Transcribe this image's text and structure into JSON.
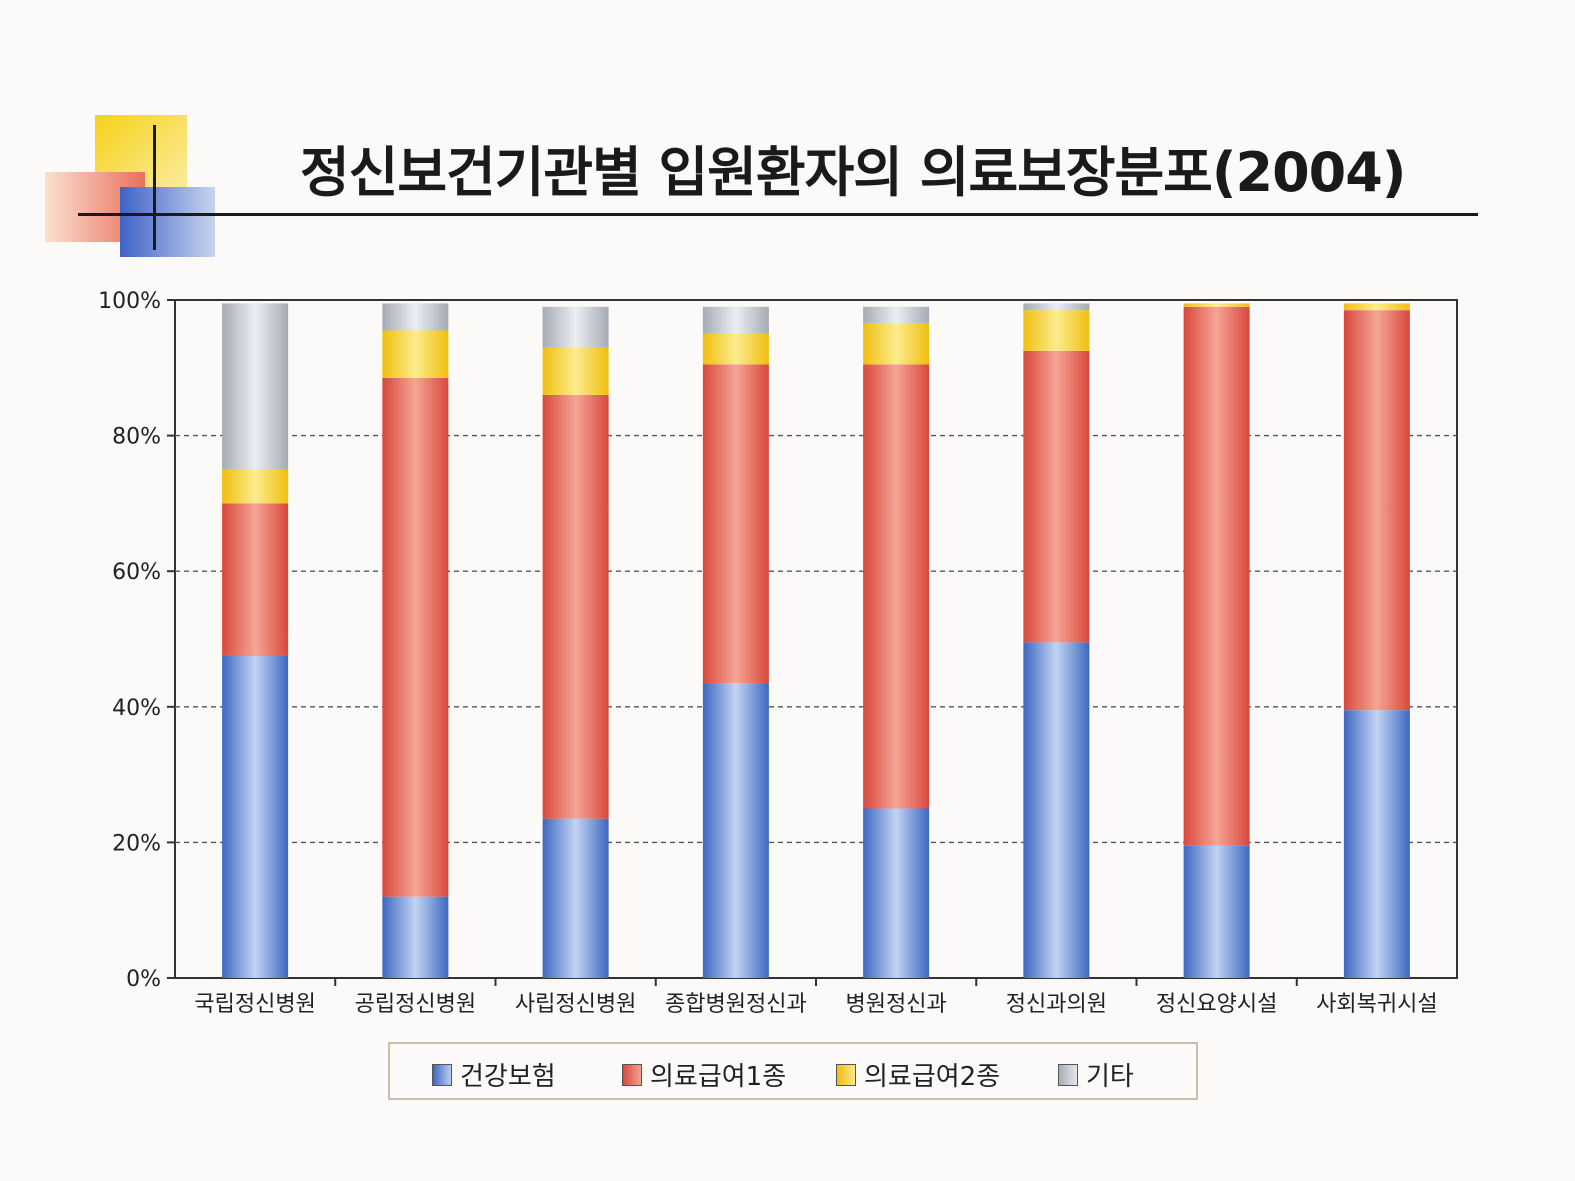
{
  "title": "정신보건기관별 입원환자의 의료보장분포(2004)",
  "colors": {
    "series": [
      "#5b86cf",
      "#e0594e",
      "#f3cf2e",
      "#c4c8d2"
    ],
    "axis": "#333333",
    "grid": "#555555"
  },
  "chart_data": {
    "type": "bar",
    "stacked": true,
    "title": "정신보건기관별 입원환자의 의료보장분포(2004)",
    "categories": [
      "국립정신병원",
      "공립정신병원",
      "사립정신병원",
      "종합병원정신과",
      "병원정신과",
      "정신과의원",
      "정신요양시설",
      "사회복귀시설"
    ],
    "series": [
      {
        "name": "건강보험",
        "values": [
          47.5,
          12,
          23.5,
          43.5,
          25,
          49.5,
          19.5,
          39.5
        ]
      },
      {
        "name": "의료급여1종",
        "values": [
          22.5,
          76.5,
          62.5,
          47,
          65.5,
          43,
          79.5,
          59
        ]
      },
      {
        "name": "의료급여2종",
        "values": [
          5,
          7,
          7,
          4.5,
          6,
          6,
          0.5,
          1
        ]
      },
      {
        "name": "기타",
        "values": [
          24.5,
          4,
          6,
          4,
          2.5,
          1,
          0,
          0
        ]
      }
    ],
    "yticks": [
      "0%",
      "20%",
      "40%",
      "60%",
      "80%",
      "100%"
    ],
    "ylim": [
      0,
      100
    ],
    "grid": true,
    "legend": "bottom"
  }
}
